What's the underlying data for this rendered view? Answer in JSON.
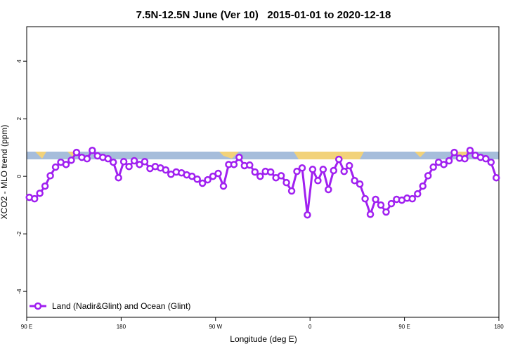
{
  "chart_data": {
    "type": "line",
    "title": "7.5N-12.5N June (Ver 10)   2015-01-01 to 2020-12-18",
    "x_label": "Longitude (deg E)",
    "y_label": "XCO2 - MLO trend (ppm)",
    "xlim": [
      90,
      540
    ],
    "xticks": [
      {
        "value": 90,
        "label": "90 E"
      },
      180,
      {
        "value": 270,
        "label": "90 W"
      },
      {
        "value": 360,
        "label": "0"
      },
      {
        "value": 450,
        "label": "90 E"
      },
      {
        "value": 540,
        "label": "180"
      }
    ],
    "ylim": [
      -4.9,
      5.2
    ],
    "yticks": [
      -4,
      -2,
      0,
      2,
      4
    ],
    "legend": "bottom-left",
    "x": [
      92.5,
      97.5,
      102.5,
      107.5,
      112.5,
      117.5,
      122.5,
      127.5,
      132.5,
      137.5,
      142.5,
      147.5,
      152.5,
      157.5,
      162.5,
      167.5,
      172.5,
      177.5,
      182.5,
      187.5,
      192.5,
      197.5,
      202.5,
      207.5,
      212.5,
      217.5,
      222.5,
      227.5,
      232.5,
      237.5,
      242.5,
      247.5,
      252.5,
      257.5,
      262.5,
      267.5,
      272.5,
      277.5,
      282.5,
      287.5,
      292.5,
      297.5,
      302.5,
      307.5,
      312.5,
      317.5,
      322.5,
      327.5,
      332.5,
      337.5,
      342.5,
      347.5,
      352.5,
      357.5,
      362.5,
      367.5,
      372.5,
      377.5,
      382.5,
      387.5,
      392.5,
      397.5,
      402.5,
      407.5,
      412.5,
      417.5,
      422.5,
      427.5,
      432.5,
      437.5,
      442.5,
      447.5,
      452.5,
      457.5,
      462.5,
      467.5,
      472.5,
      477.5,
      482.5,
      487.5,
      492.5,
      497.5,
      502.5,
      507.5,
      512.5,
      517.5,
      522.5,
      527.5,
      532.5,
      537.5
    ],
    "series": [
      {
        "name": "Land (Nadir&Glint) and Ocean (Glint)",
        "color": "#a020f0",
        "values": [
          -0.73,
          -0.78,
          -0.59,
          -0.34,
          0.02,
          0.32,
          0.49,
          0.41,
          0.56,
          0.83,
          0.66,
          0.61,
          0.9,
          0.71,
          0.66,
          0.61,
          0.49,
          -0.05,
          0.51,
          0.34,
          0.54,
          0.41,
          0.51,
          0.27,
          0.34,
          0.29,
          0.22,
          0.07,
          0.15,
          0.12,
          0.05,
          0,
          -0.1,
          -0.24,
          -0.12,
          0,
          0.1,
          -0.34,
          0.41,
          0.41,
          0.66,
          0.37,
          0.39,
          0.15,
          0,
          0.17,
          0.15,
          -0.05,
          0.02,
          -0.22,
          -0.51,
          0.17,
          0.29,
          -1.34,
          0.24,
          -0.15,
          0.24,
          -0.46,
          0.2,
          0.59,
          0.17,
          0.37,
          -0.15,
          -0.27,
          -0.78,
          -1.32,
          -0.8,
          -1.0,
          -1.24,
          -0.95,
          -0.8,
          -0.83,
          -0.76,
          -0.78,
          -0.61,
          -0.34,
          0.02,
          0.32,
          0.49,
          0.41,
          0.54,
          0.83,
          0.63,
          0.61,
          0.9,
          0.73,
          0.66,
          0.61,
          0.49,
          -0.05
        ]
      }
    ]
  }
}
